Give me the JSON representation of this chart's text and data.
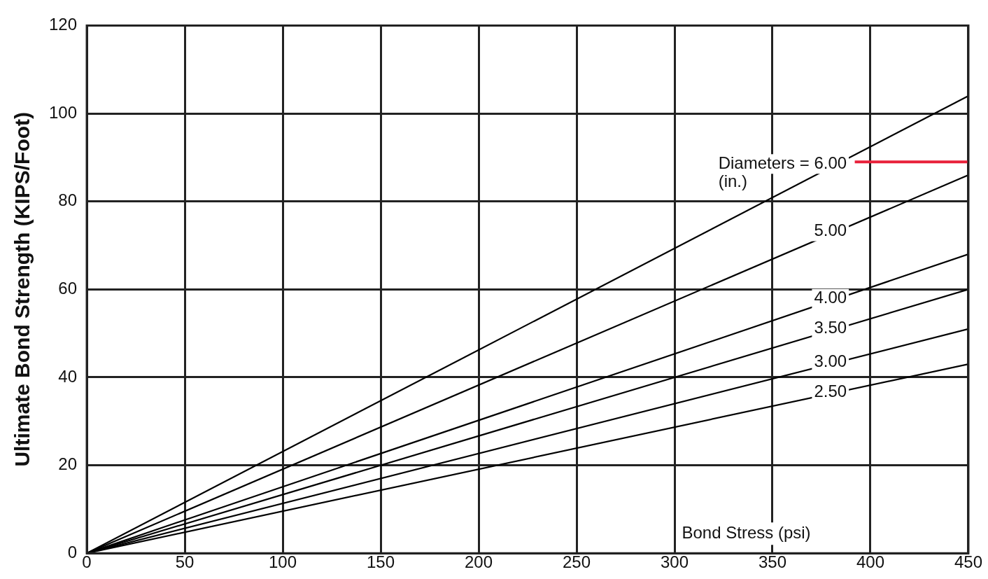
{
  "chart_data": {
    "type": "line",
    "xlabel": "Bond Stress (psi)",
    "ylabel": "Ultimate Bond Strength (KIPS/Foot)",
    "xlim": [
      0,
      450
    ],
    "xticks": [
      0,
      50,
      100,
      150,
      200,
      250,
      300,
      350,
      400,
      450
    ],
    "ylim": [
      0,
      120
    ],
    "yticks": [
      0,
      20,
      40,
      60,
      80,
      100,
      120
    ],
    "x": [
      0,
      450
    ],
    "grid": true,
    "legend": false,
    "marker": "none",
    "line_style": "solid",
    "series": [
      {
        "name": "Diameters = 6.00",
        "color": "#000000",
        "values": [
          0,
          104
        ]
      },
      {
        "name": "5.00",
        "color": "#000000",
        "values": [
          0,
          86
        ]
      },
      {
        "name": "4.00",
        "color": "#000000",
        "values": [
          0,
          68
        ]
      },
      {
        "name": "3.50",
        "color": "#000000",
        "values": [
          0,
          60
        ]
      },
      {
        "name": "3.00",
        "color": "#000000",
        "values": [
          0,
          51
        ]
      },
      {
        "name": "2.50",
        "color": "#000000",
        "values": [
          0,
          43
        ]
      },
      {
        "color": "#e8213a",
        "x": [
          392,
          450
        ],
        "values": [
          89,
          89
        ]
      }
    ],
    "annotations": [
      "(in.)"
    ]
  }
}
